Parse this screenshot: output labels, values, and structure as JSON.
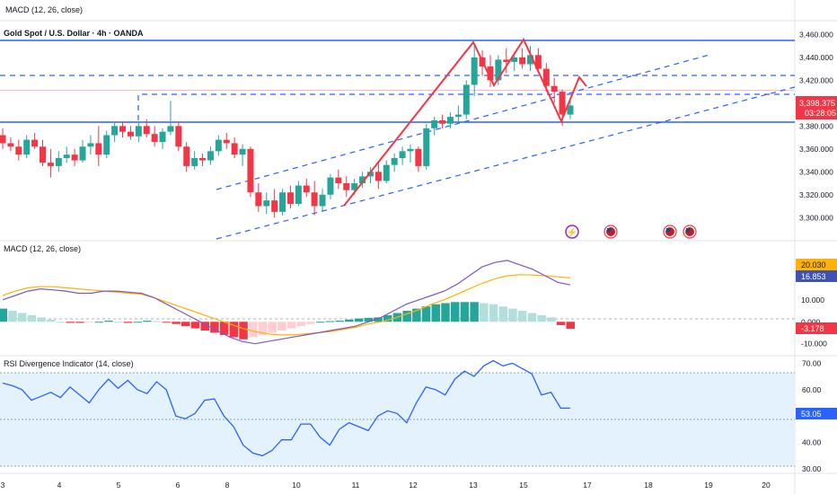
{
  "header": {
    "top_label": "MACD (12, 26, close)",
    "symbol": "Gold Spot / U.S. Dollar · 4h · OANDA"
  },
  "price_pane": {
    "axis_ticks": [
      "3,460.000",
      "3,440.000",
      "3,420.000",
      "3,400.000",
      "3,380.000",
      "3,360.000",
      "3,340.000",
      "3,320.000",
      "3,300.000"
    ],
    "last_price": "3,398.375",
    "countdown": "03:28:05",
    "colors": {
      "up": "#26a69a",
      "down": "#f23645",
      "pattern": "#f23645",
      "level": "#2962ff",
      "channel": "#2962ff"
    }
  },
  "macd_pane": {
    "label": "MACD (12, 26, close)",
    "axis_ticks": [
      "10.000",
      "0.000",
      "-10.000"
    ],
    "signal_tag": "20.030",
    "macd_tag": "16.853",
    "hist_tag": "-3.178",
    "colors": {
      "macd": "#7e57c2",
      "signal": "#ffb300",
      "hist_up": "#26a69a",
      "hist_up_fade": "#b2dfdb",
      "hist_down": "#f23645",
      "hist_down_fade": "#ffcdd2"
    }
  },
  "rsi_pane": {
    "label": "RSI Divergence Indicator (14, close)",
    "axis_ticks": [
      "70.00",
      "60.00",
      "50.00",
      "40.00",
      "30.00"
    ],
    "value_tag": "53.05",
    "colors": {
      "line": "#2962ff",
      "band": "#e3f2fd"
    }
  },
  "time_axis": [
    "3",
    "4",
    "5",
    "6",
    "8",
    "10",
    "11",
    "12",
    "13",
    "15",
    "17",
    "18",
    "19",
    "20"
  ],
  "chart_data": [
    {
      "type": "candlestick",
      "ylim": [
        3290,
        3465
      ],
      "candles": [
        [
          3372,
          3378,
          3360,
          3365
        ],
        [
          3365,
          3370,
          3358,
          3362
        ],
        [
          3362,
          3368,
          3350,
          3355
        ],
        [
          3355,
          3372,
          3352,
          3368
        ],
        [
          3368,
          3374,
          3360,
          3362
        ],
        [
          3362,
          3368,
          3345,
          3348
        ],
        [
          3348,
          3360,
          3335,
          3345
        ],
        [
          3345,
          3358,
          3340,
          3352
        ],
        [
          3352,
          3362,
          3348,
          3355
        ],
        [
          3355,
          3360,
          3345,
          3350
        ],
        [
          3350,
          3368,
          3348,
          3362
        ],
        [
          3362,
          3372,
          3355,
          3365
        ],
        [
          3365,
          3380,
          3345,
          3355
        ],
        [
          3355,
          3376,
          3352,
          3372
        ],
        [
          3372,
          3384,
          3366,
          3380
        ],
        [
          3380,
          3384,
          3370,
          3375
        ],
        [
          3375,
          3380,
          3368,
          3371
        ],
        [
          3371,
          3384,
          3366,
          3380
        ],
        [
          3380,
          3386,
          3370,
          3373
        ],
        [
          3373,
          3380,
          3362,
          3366
        ],
        [
          3366,
          3378,
          3360,
          3375
        ],
        [
          3375,
          3402,
          3372,
          3380
        ],
        [
          3380,
          3384,
          3358,
          3362
        ],
        [
          3362,
          3366,
          3340,
          3345
        ],
        [
          3345,
          3358,
          3342,
          3352
        ],
        [
          3352,
          3356,
          3345,
          3350
        ],
        [
          3350,
          3362,
          3346,
          3358
        ],
        [
          3358,
          3372,
          3354,
          3368
        ],
        [
          3368,
          3374,
          3360,
          3365
        ],
        [
          3365,
          3370,
          3352,
          3355
        ],
        [
          3355,
          3364,
          3345,
          3360
        ],
        [
          3360,
          3362,
          3318,
          3322
        ],
        [
          3322,
          3330,
          3305,
          3310
        ],
        [
          3310,
          3322,
          3303,
          3315
        ],
        [
          3315,
          3325,
          3300,
          3305
        ],
        [
          3305,
          3325,
          3302,
          3322
        ],
        [
          3322,
          3328,
          3308,
          3312
        ],
        [
          3312,
          3332,
          3310,
          3328
        ],
        [
          3328,
          3334,
          3318,
          3322
        ],
        [
          3322,
          3332,
          3302,
          3310
        ],
        [
          3310,
          3325,
          3306,
          3320
        ],
        [
          3320,
          3338,
          3316,
          3335
        ],
        [
          3335,
          3342,
          3325,
          3330
        ],
        [
          3330,
          3336,
          3318,
          3324
        ],
        [
          3324,
          3334,
          3320,
          3330
        ],
        [
          3330,
          3340,
          3326,
          3336
        ],
        [
          3336,
          3344,
          3330,
          3340
        ],
        [
          3340,
          3348,
          3325,
          3332
        ],
        [
          3332,
          3350,
          3330,
          3346
        ],
        [
          3346,
          3356,
          3340,
          3352
        ],
        [
          3352,
          3362,
          3346,
          3358
        ],
        [
          3358,
          3364,
          3348,
          3360
        ],
        [
          3360,
          3362,
          3340,
          3345
        ],
        [
          3345,
          3382,
          3342,
          3378
        ],
        [
          3378,
          3388,
          3372,
          3385
        ],
        [
          3385,
          3390,
          3378,
          3382
        ],
        [
          3382,
          3392,
          3378,
          3388
        ],
        [
          3388,
          3398,
          3382,
          3390
        ],
        [
          3390,
          3420,
          3386,
          3416
        ],
        [
          3416,
          3450,
          3406,
          3440
        ],
        [
          3440,
          3446,
          3424,
          3432
        ],
        [
          3432,
          3442,
          3414,
          3420
        ],
        [
          3420,
          3442,
          3416,
          3438
        ],
        [
          3438,
          3448,
          3426,
          3436
        ],
        [
          3436,
          3444,
          3428,
          3440
        ],
        [
          3440,
          3448,
          3430,
          3434
        ],
        [
          3434,
          3450,
          3428,
          3442
        ],
        [
          3442,
          3448,
          3426,
          3430
        ],
        [
          3430,
          3435,
          3410,
          3415
        ],
        [
          3415,
          3422,
          3400,
          3410
        ],
        [
          3410,
          3412,
          3380,
          3390
        ],
        [
          3390,
          3402,
          3386,
          3398
        ]
      ]
    },
    {
      "type": "line",
      "name": "MACD (12, 26, close)",
      "ylim": [
        -13,
        30
      ],
      "series": [
        {
          "name": "histogram",
          "values": [
            6,
            5,
            4,
            3,
            2,
            1,
            0,
            -0.5,
            -0.5,
            -0.3,
            0,
            0.5,
            0,
            -0.5,
            0,
            0.5,
            0.3,
            -0.3,
            -1,
            -2,
            -3,
            -4,
            -5,
            -6,
            -7,
            -8,
            -7,
            -6,
            -5,
            -4,
            -3,
            -2,
            -1,
            0,
            0.3,
            0.5,
            1,
            1.5,
            1.8,
            2,
            3,
            4,
            5,
            6,
            7,
            8,
            8.5,
            9,
            9,
            9,
            8.5,
            8,
            7,
            6,
            5,
            4,
            3,
            2,
            -1.5,
            -3.2
          ]
        },
        {
          "name": "MACD",
          "values": [
            10,
            12,
            14,
            15,
            14.5,
            14,
            13,
            13,
            14,
            14,
            13.5,
            13,
            11,
            8,
            5,
            2,
            -1,
            -4,
            -7,
            -9,
            -10,
            -9,
            -8,
            -7,
            -6,
            -5,
            -4,
            -3,
            -2,
            0,
            2,
            5,
            8,
            10,
            12,
            14,
            17,
            21,
            25,
            27,
            28,
            26,
            24,
            21,
            18,
            16.8
          ]
        },
        {
          "name": "Signal",
          "values": [
            12,
            14,
            15.5,
            16,
            16,
            15.5,
            15,
            14.5,
            14,
            13.5,
            13,
            12.5,
            11,
            9,
            7,
            5,
            3,
            1,
            -1,
            -3,
            -4.5,
            -5.5,
            -6,
            -6,
            -5.5,
            -5,
            -4.5,
            -3.5,
            -2.5,
            -1,
            0,
            1.5,
            3.5,
            5.5,
            8,
            10,
            12.5,
            15,
            17.5,
            19.5,
            21,
            21.5,
            21.3,
            21,
            20.5,
            20
          ]
        }
      ]
    },
    {
      "type": "line",
      "name": "RSI Divergence Indicator (14, close)",
      "ylim": [
        29,
        71.5
      ],
      "series": [
        {
          "name": "RSI",
          "values": [
            62.5,
            61.5,
            60,
            56,
            57.5,
            59,
            57,
            61,
            58,
            55,
            60,
            64,
            60.5,
            63.5,
            60,
            58.5,
            63,
            60,
            50,
            49,
            51,
            56,
            56.5,
            50,
            46,
            39,
            36,
            35,
            37,
            41,
            41,
            47,
            47,
            42,
            39,
            45,
            47.5,
            46,
            44.5,
            50,
            52,
            51,
            47.5,
            55,
            61,
            60,
            58,
            64,
            67,
            65,
            69,
            71,
            69,
            70,
            68,
            66,
            58,
            59,
            53,
            53
          ]
        }
      ]
    }
  ]
}
